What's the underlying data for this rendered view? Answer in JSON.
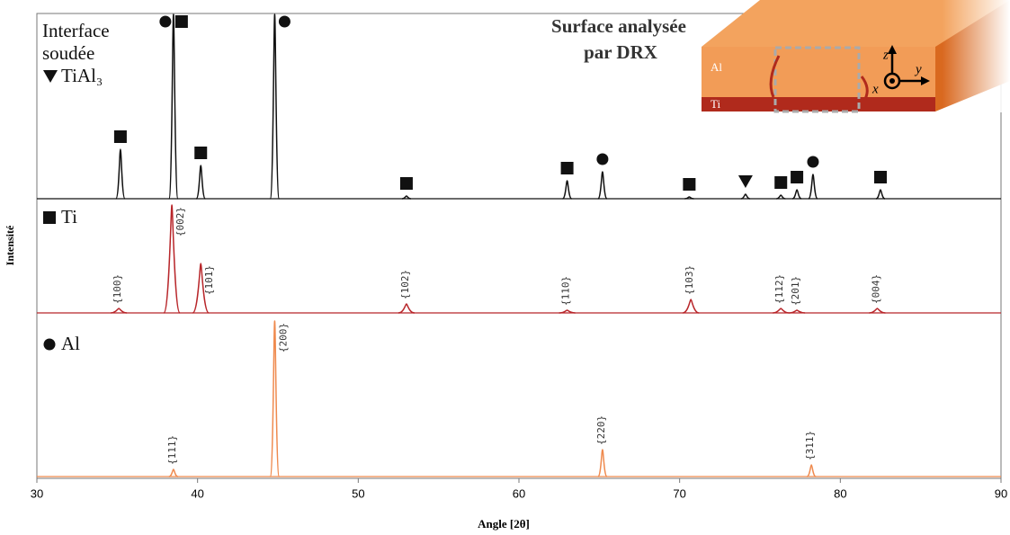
{
  "chart_data": {
    "type": "xrd",
    "x_label": "Angle [2θ]",
    "y_label": "Intensité",
    "xlim": [
      30,
      90
    ],
    "xticks": [
      30,
      40,
      50,
      60,
      70,
      80,
      90
    ],
    "series": [
      {
        "name": "Interface soudée",
        "color": "#111111",
        "x": [
          35.2,
          38.5,
          40.2,
          44.8,
          53.0,
          63.0,
          65.2,
          70.6,
          74.1,
          76.3,
          77.3,
          78.3,
          82.5
        ],
        "values": [
          55,
          205,
          37,
          205,
          3,
          20,
          30,
          2,
          5,
          4,
          10,
          27,
          10
        ],
        "phases": [
          [
            "square"
          ],
          [
            "circle",
            "square"
          ],
          [
            "square"
          ],
          [
            "circle"
          ],
          [
            "square"
          ],
          [
            "square"
          ],
          [
            "circle"
          ],
          [
            "square"
          ],
          [
            "triangle"
          ],
          [
            "square"
          ],
          [
            "square"
          ],
          [
            "circle"
          ],
          [
            "square"
          ]
        ],
        "extra_phase": {
          "name": "TiAl₃",
          "symbol": "triangle"
        }
      },
      {
        "name": "Ti",
        "color": "#b8262a",
        "symbol": "square",
        "x": [
          35.1,
          38.4,
          40.2,
          53.0,
          63.0,
          70.7,
          76.3,
          77.3,
          82.3
        ],
        "values": [
          5,
          120,
          55,
          10,
          3,
          15,
          5,
          3,
          5
        ],
        "peak_labels": [
          "{100}",
          "{002}",
          "{101}",
          "{102}",
          "{110}",
          "{103}",
          "{112}",
          "{201}",
          "{004}"
        ]
      },
      {
        "name": "Al",
        "color": "#ef8a4e",
        "symbol": "circle",
        "x": [
          38.5,
          44.8,
          65.2,
          78.2
        ],
        "values": [
          8,
          173,
          30,
          13
        ],
        "peak_labels": [
          "{111}",
          "{200}",
          "{220}",
          "{311}"
        ]
      }
    ],
    "inset": {
      "title_lines": [
        "Surface analysée",
        "par DRX"
      ],
      "layer_labels": [
        "Al",
        "Ti"
      ],
      "axis_labels": [
        "z",
        "y",
        "x"
      ]
    }
  }
}
